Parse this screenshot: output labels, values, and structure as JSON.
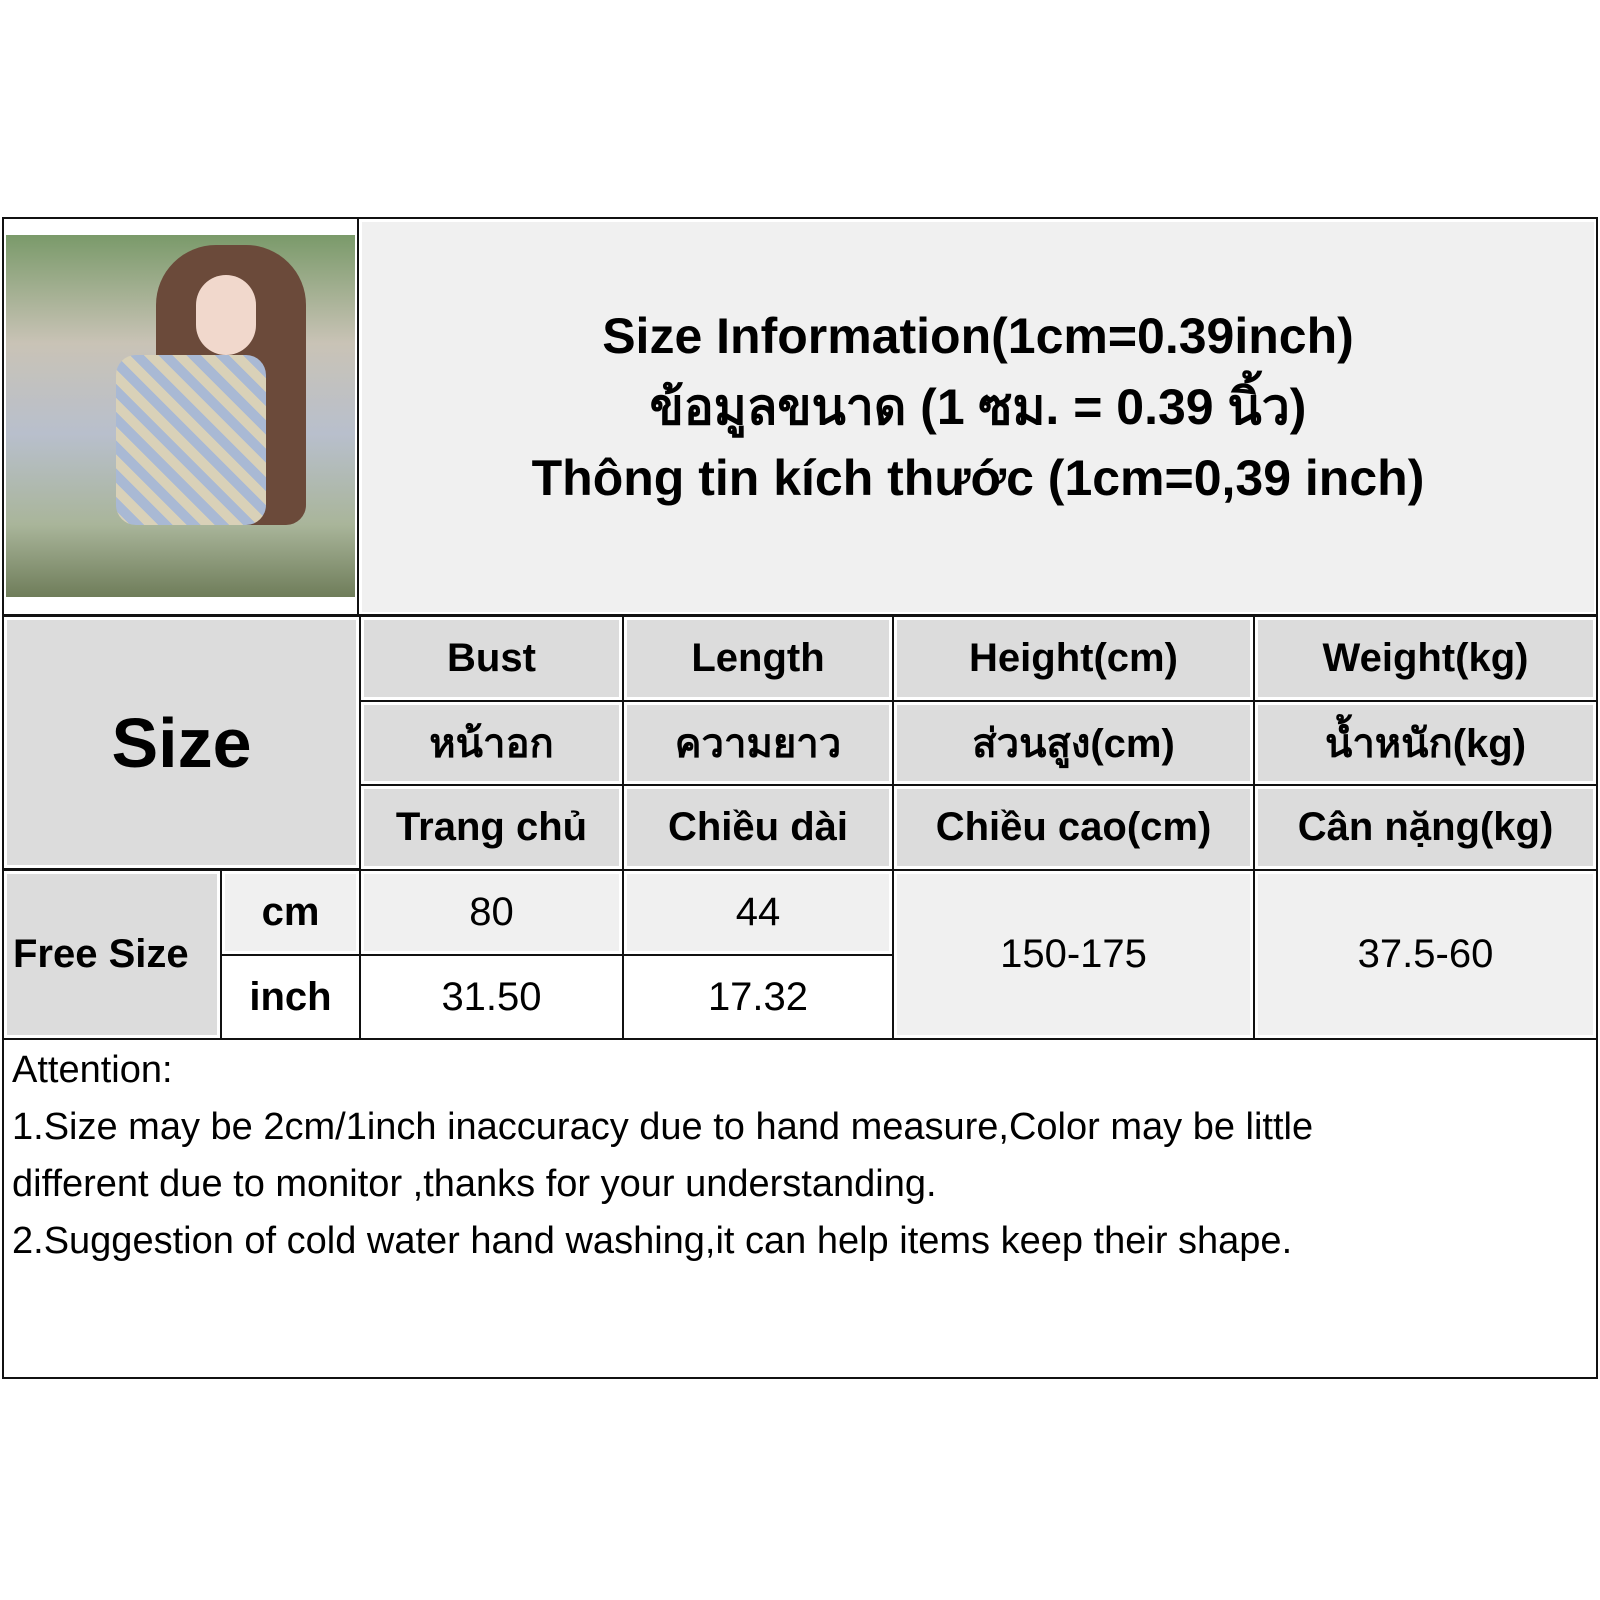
{
  "header": {
    "lines": [
      "Size Information(1cm=0.39inch)",
      "ข้อมูลขนาด (1 ซม. = 0.39 นิ้ว)",
      "Thông tin kích thước (1cm=0,39 inch)"
    ]
  },
  "photo": {
    "alt": "product photo"
  },
  "table": {
    "size_label": "Size",
    "columns": [
      {
        "en": "Bust",
        "th": "หน้าอก",
        "vi": "Trang chủ"
      },
      {
        "en": "Length",
        "th": "ความยาว",
        "vi": "Chiều dài"
      },
      {
        "en": "Height(cm)",
        "th": "ส่วนสูง(cm)",
        "vi": "Chiều cao(cm)"
      },
      {
        "en": "Weight(kg)",
        "th": "น้ำหนัก(kg)",
        "vi": "Cân nặng(kg)"
      }
    ],
    "row": {
      "size": "Free Size",
      "unit_cm": "cm",
      "unit_inch": "inch",
      "bust_cm": "80",
      "length_cm": "44",
      "bust_inch": "31.50",
      "length_inch": "17.32",
      "height": "150-175",
      "weight": "37.5-60"
    }
  },
  "attention": {
    "title": "Attention:",
    "lines": [
      "1.Size may be 2cm/1inch inaccuracy due to hand measure,Color may be little",
      "different due to monitor ,thanks for your understanding.",
      "2.Suggestion of cold water hand washing,it can help items keep their shape."
    ]
  }
}
